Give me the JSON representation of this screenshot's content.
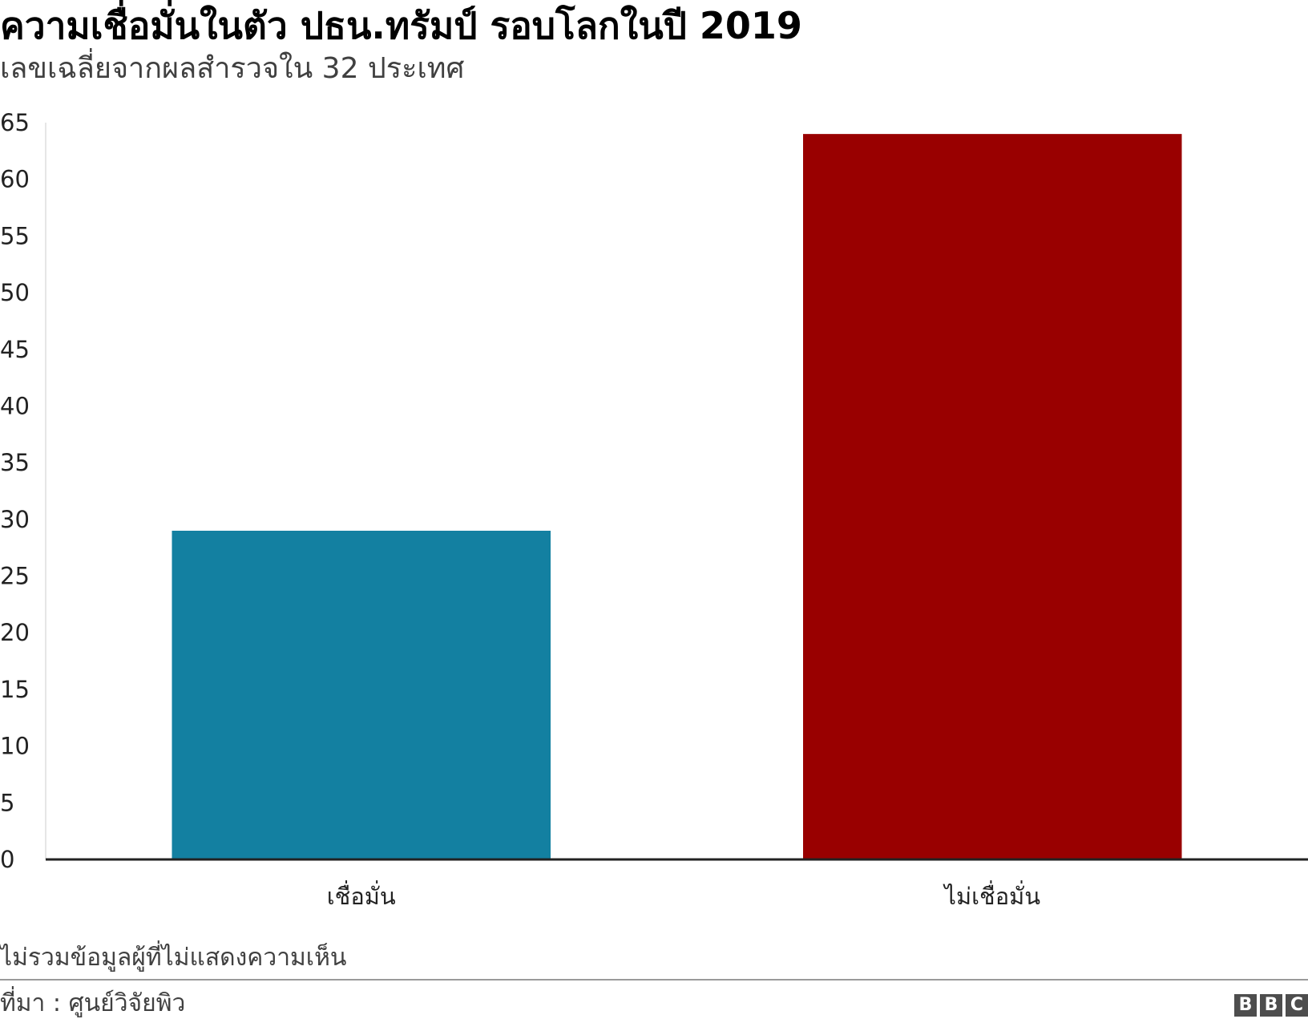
{
  "title": "ความเชื่อมั่นในตัว ปธน.ทรัมป์ รอบโลกในปี 2019",
  "subtitle": "เลขเฉลี่ยจากผลสำรวจใน 32 ประเทศ",
  "note": "ไม่รวมข้อมูลผู้ที่ไม่แสดงความเห็น",
  "source": "ที่มา : ศูนย์วิจัยพิว",
  "logo_letters": [
    "B",
    "B",
    "C"
  ],
  "chart_data": {
    "type": "bar",
    "categories": [
      "เชื่อมั่น",
      "ไม่เชื่อมั่น"
    ],
    "values": [
      29,
      64
    ],
    "colors": [
      "#1380a1",
      "#990000"
    ],
    "title": "ความเชื่อมั่นในตัว ปธน.ทรัมป์ รอบโลกในปี 2019",
    "subtitle": "เลขเฉลี่ยจากผลสำรวจใน 32 ประเทศ",
    "xlabel": "",
    "ylabel": "",
    "ylim": [
      0,
      65
    ],
    "yticks": [
      0,
      5,
      10,
      15,
      20,
      25,
      30,
      35,
      40,
      45,
      50,
      55,
      60,
      65
    ],
    "grid": false,
    "legend": "none"
  }
}
